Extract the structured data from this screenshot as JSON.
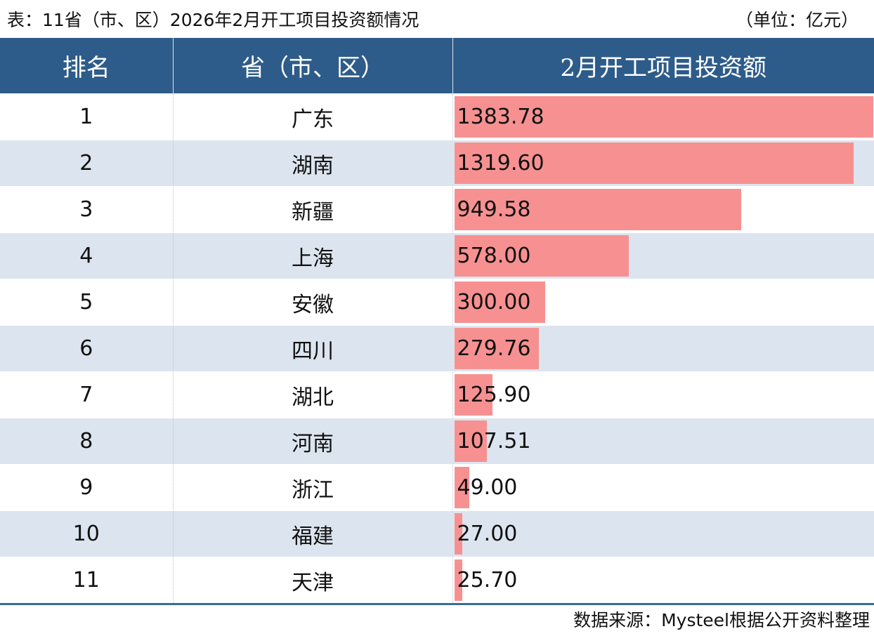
{
  "header": {
    "title": "表：11省（市、区）2026年2月开工项目投资额情况",
    "unit": "（单位：亿元）"
  },
  "table": {
    "columns": [
      "排名",
      "省（市、区）",
      "2月开工项目投资额"
    ]
  },
  "footer": {
    "source": "数据来源：Mysteel根据公开资料整理"
  },
  "colors": {
    "header_bg": "#2e5c8a",
    "stripe_bg": "#dce5ef",
    "bar": "#f79191"
  },
  "chart_data": {
    "type": "table",
    "title": "表：11省（市、区）2026年2月开工项目投资额情况",
    "columns": [
      "排名",
      "省（市、区）",
      "2月开工项目投资额"
    ],
    "unit": "（单位：亿元）",
    "rows": [
      {
        "rank": "1",
        "province": "广东",
        "label": "1383.78",
        "value": 1383.78
      },
      {
        "rank": "2",
        "province": "湖南",
        "label": "1319.60",
        "value": 1319.6
      },
      {
        "rank": "3",
        "province": "新疆",
        "label": "949.58",
        "value": 949.58
      },
      {
        "rank": "4",
        "province": "上海",
        "label": "578.00",
        "value": 578.0
      },
      {
        "rank": "5",
        "province": "安徽",
        "label": "300.00",
        "value": 300.0
      },
      {
        "rank": "6",
        "province": "四川",
        "label": "279.76",
        "value": 279.76
      },
      {
        "rank": "7",
        "province": "湖北",
        "label": "125.90",
        "value": 125.9
      },
      {
        "rank": "8",
        "province": "河南",
        "label": "107.51",
        "value": 107.51
      },
      {
        "rank": "9",
        "province": "浙江",
        "label": "49.00",
        "value": 49.0
      },
      {
        "rank": "10",
        "province": "福建",
        "label": "27.00",
        "value": 27.0
      },
      {
        "rank": "11",
        "province": "天津",
        "label": "25.70",
        "value": 25.7
      }
    ]
  }
}
